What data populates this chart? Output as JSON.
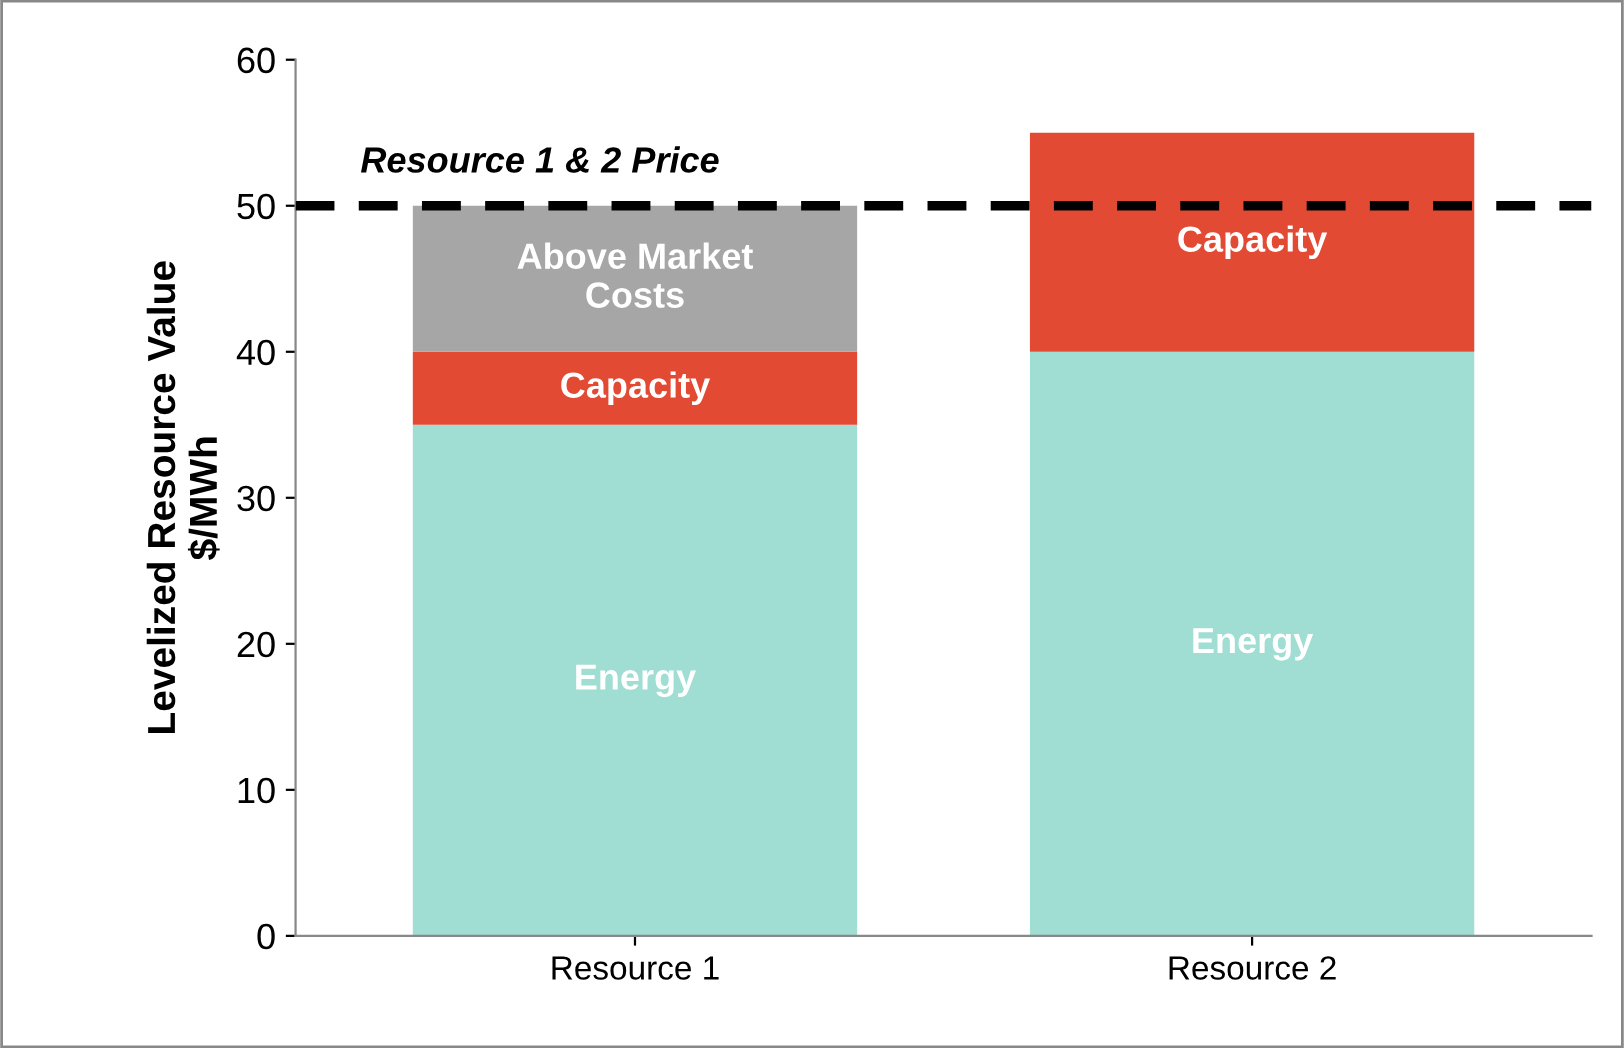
{
  "chart_data": {
    "type": "bar",
    "stacked": true,
    "categories": [
      "Resource 1",
      "Resource 2"
    ],
    "ylabel": "Levelized Resource Value\n$/MWh",
    "ylim": [
      0,
      60
    ],
    "yticks": [
      0,
      10,
      20,
      30,
      40,
      50,
      60
    ],
    "grid": false,
    "legend": false,
    "series": [
      {
        "name": "Energy",
        "color": "#a0ddd3",
        "values": [
          35,
          40
        ]
      },
      {
        "name": "Capacity",
        "color": "#e34a33",
        "values": [
          5,
          15
        ]
      },
      {
        "name": "Above Market\nCosts",
        "color": "#a6a6a6",
        "values": [
          10,
          null
        ]
      }
    ],
    "ref_lines": [
      {
        "axis": "y",
        "value": 50,
        "label": "Resource 1 & 2 Price",
        "color": "#000000",
        "line_style": "dashed"
      }
    ]
  }
}
